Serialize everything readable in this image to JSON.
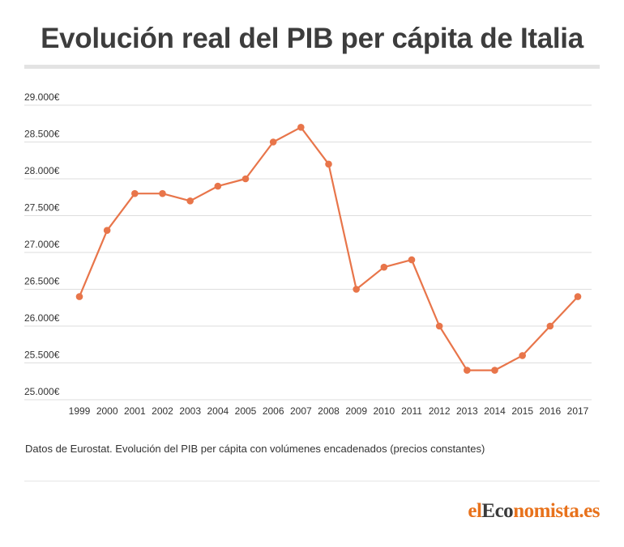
{
  "header": {
    "title": "Evolución real del PIB per cápita de Italia"
  },
  "chart_data": {
    "type": "line",
    "title": "Evolución real del PIB per cápita de Italia",
    "xlabel": "",
    "ylabel": "",
    "x": [
      "1999",
      "2000",
      "2001",
      "2002",
      "2003",
      "2004",
      "2005",
      "2006",
      "2007",
      "2008",
      "2009",
      "2010",
      "2011",
      "2012",
      "2013",
      "2014",
      "2015",
      "2016",
      "2017"
    ],
    "series": [
      {
        "values": [
          26400,
          27300,
          27800,
          27800,
          27700,
          27900,
          28000,
          28500,
          28700,
          28200,
          26500,
          26800,
          26900,
          26000,
          25400,
          25400,
          25600,
          26000,
          26400
        ]
      }
    ],
    "ylim": [
      25000,
      29000
    ],
    "yticks": [
      25000,
      25500,
      26000,
      26500,
      27000,
      27500,
      28000,
      28500,
      29000
    ],
    "ytick_labels": [
      "25.000€",
      "25.500€",
      "26.000€",
      "26.500€",
      "27.000€",
      "27.500€",
      "28.000€",
      "28.500€",
      "29.000€"
    ],
    "grid": true,
    "legend": "none",
    "color": "#e8754a"
  },
  "footer": {
    "source": "Datos de Eurostat. Evolución del PIB per cápita con volúmenes encadenados (precios constantes)",
    "logo_el": "el",
    "logo_eco": "Eco",
    "logo_rest": "nomista.es"
  }
}
